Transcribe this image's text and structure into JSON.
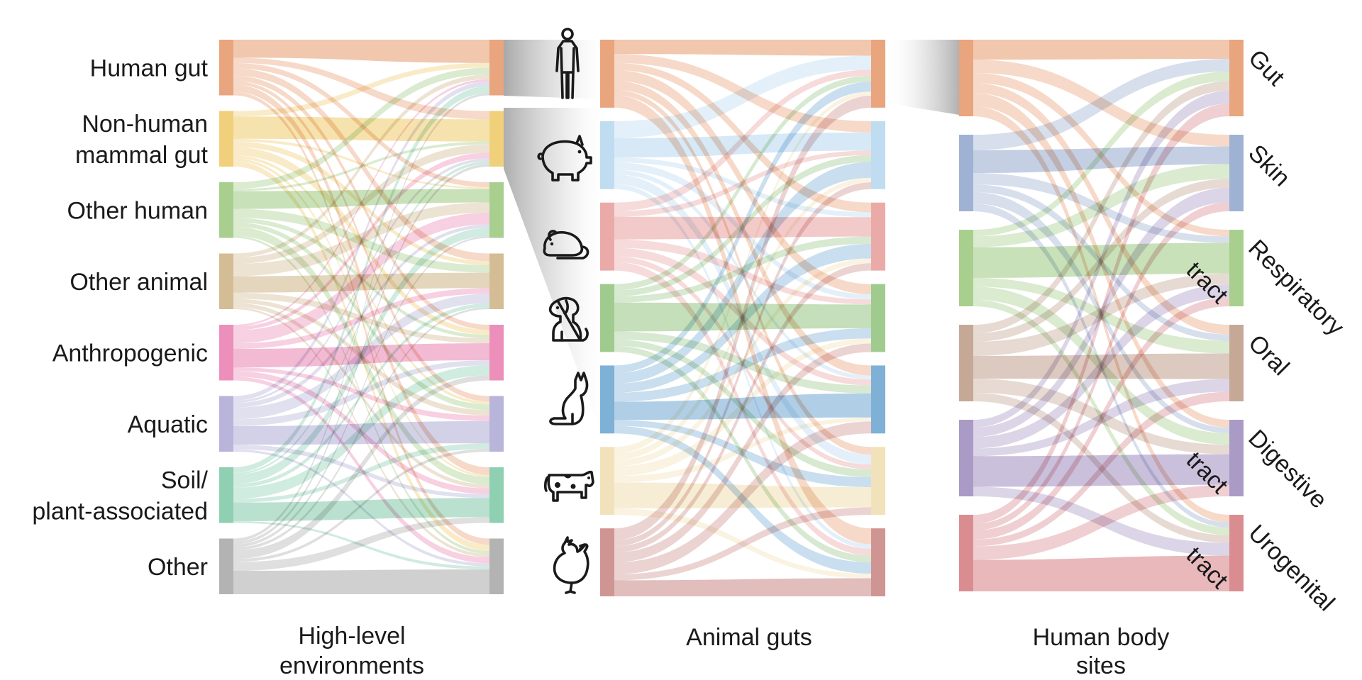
{
  "panels": {
    "environments": {
      "title_lines": [
        "High-level",
        "environments"
      ],
      "nodes": [
        {
          "label_lines": [
            "Human gut"
          ],
          "color": "#e9a57d"
        },
        {
          "label_lines": [
            "Non-human",
            "mammal gut"
          ],
          "color": "#f1d07b"
        },
        {
          "label_lines": [
            "Other human"
          ],
          "color": "#a8cf8e"
        },
        {
          "label_lines": [
            "Other animal"
          ],
          "color": "#d4bd95"
        },
        {
          "label_lines": [
            "Anthropogenic"
          ],
          "color": "#ec8fba"
        },
        {
          "label_lines": [
            "Aquatic"
          ],
          "color": "#b8b4da"
        },
        {
          "label_lines": [
            "Soil/",
            "plant-associated"
          ],
          "color": "#8fcfb2"
        },
        {
          "label_lines": [
            "Other"
          ],
          "color": "#b3b3b3"
        }
      ]
    },
    "animal_guts": {
      "title_lines": [
        "Animal guts"
      ],
      "nodes": [
        {
          "icon": "human-icon",
          "color": "#e9a57d"
        },
        {
          "icon": "pig-icon",
          "color": "#bfdcf0"
        },
        {
          "icon": "rodent-icon",
          "color": "#eaaaa8"
        },
        {
          "icon": "dog-icon",
          "color": "#9fcb8e"
        },
        {
          "icon": "cat-icon",
          "color": "#7fb0d6"
        },
        {
          "icon": "cow-icon",
          "color": "#f2e2bb"
        },
        {
          "icon": "chicken-icon",
          "color": "#cf9593"
        }
      ]
    },
    "body_sites": {
      "title_lines": [
        "Human body",
        "sites"
      ],
      "nodes": [
        {
          "label_lines": [
            "Gut"
          ],
          "color": "#e9a57d"
        },
        {
          "label_lines": [
            "Skin"
          ],
          "color": "#9fb2d3"
        },
        {
          "label_lines": [
            "Respiratory",
            "tract"
          ],
          "color": "#a8cf8e"
        },
        {
          "label_lines": [
            "Oral"
          ],
          "color": "#c6a897"
        },
        {
          "label_lines": [
            "Digestive",
            "tract"
          ],
          "color": "#a99ac6"
        },
        {
          "label_lines": [
            "Urogenital",
            "tract"
          ],
          "color": "#da8d91"
        }
      ]
    }
  },
  "flows": {
    "environments": [
      [
        0,
        0,
        10
      ],
      [
        0,
        1,
        3
      ],
      [
        0,
        2,
        3
      ],
      [
        0,
        3,
        4
      ],
      [
        0,
        4,
        3
      ],
      [
        0,
        5,
        2
      ],
      [
        0,
        6,
        4
      ],
      [
        0,
        7,
        2
      ],
      [
        1,
        0,
        2
      ],
      [
        1,
        1,
        8
      ],
      [
        1,
        2,
        1
      ],
      [
        1,
        3,
        2
      ],
      [
        1,
        4,
        3
      ],
      [
        1,
        5,
        1
      ],
      [
        1,
        6,
        1
      ],
      [
        1,
        7,
        2
      ],
      [
        2,
        0,
        3
      ],
      [
        2,
        1,
        1
      ],
      [
        2,
        2,
        8
      ],
      [
        2,
        3,
        4
      ],
      [
        2,
        4,
        2
      ],
      [
        2,
        5,
        2
      ],
      [
        2,
        6,
        4
      ],
      [
        2,
        7,
        1
      ],
      [
        3,
        0,
        2
      ],
      [
        3,
        1,
        3
      ],
      [
        3,
        2,
        6
      ],
      [
        3,
        3,
        8
      ],
      [
        3,
        4,
        3
      ],
      [
        3,
        5,
        2
      ],
      [
        3,
        6,
        2
      ],
      [
        3,
        7,
        1
      ],
      [
        4,
        0,
        1
      ],
      [
        4,
        1,
        2
      ],
      [
        4,
        2,
        7
      ],
      [
        4,
        3,
        3
      ],
      [
        4,
        4,
        10
      ],
      [
        4,
        5,
        2
      ],
      [
        4,
        6,
        3
      ],
      [
        4,
        7,
        2
      ],
      [
        5,
        0,
        2
      ],
      [
        5,
        1,
        1
      ],
      [
        5,
        2,
        2
      ],
      [
        5,
        3,
        5
      ],
      [
        5,
        4,
        3
      ],
      [
        5,
        5,
        8
      ],
      [
        5,
        6,
        2
      ],
      [
        5,
        7,
        1
      ],
      [
        6,
        0,
        3
      ],
      [
        6,
        1,
        1
      ],
      [
        6,
        2,
        5
      ],
      [
        6,
        3,
        2
      ],
      [
        6,
        4,
        6
      ],
      [
        6,
        5,
        2
      ],
      [
        6,
        6,
        10
      ],
      [
        6,
        7,
        1
      ],
      [
        7,
        0,
        1
      ],
      [
        7,
        1,
        1
      ],
      [
        7,
        2,
        1
      ],
      [
        7,
        3,
        1
      ],
      [
        7,
        4,
        3
      ],
      [
        7,
        5,
        1
      ],
      [
        7,
        6,
        3
      ],
      [
        7,
        7,
        8
      ]
    ],
    "animal_guts": [
      [
        0,
        0,
        8
      ],
      [
        0,
        1,
        5
      ],
      [
        0,
        2,
        4
      ],
      [
        0,
        3,
        6
      ],
      [
        0,
        4,
        5
      ],
      [
        0,
        5,
        3
      ],
      [
        0,
        6,
        7
      ],
      [
        1,
        0,
        7
      ],
      [
        1,
        1,
        8
      ],
      [
        1,
        2,
        2
      ],
      [
        1,
        3,
        3
      ],
      [
        1,
        4,
        2
      ],
      [
        1,
        5,
        4
      ],
      [
        1,
        6,
        2
      ],
      [
        2,
        0,
        3
      ],
      [
        2,
        1,
        2
      ],
      [
        2,
        2,
        8
      ],
      [
        2,
        3,
        3
      ],
      [
        2,
        4,
        3
      ],
      [
        2,
        5,
        2
      ],
      [
        2,
        6,
        3
      ],
      [
        3,
        0,
        3
      ],
      [
        3,
        1,
        3
      ],
      [
        3,
        2,
        3
      ],
      [
        3,
        3,
        14
      ],
      [
        3,
        4,
        4
      ],
      [
        3,
        5,
        3
      ],
      [
        3,
        6,
        3
      ],
      [
        4,
        0,
        5
      ],
      [
        4,
        1,
        7
      ],
      [
        4,
        2,
        6
      ],
      [
        4,
        3,
        6
      ],
      [
        4,
        4,
        12
      ],
      [
        4,
        5,
        4
      ],
      [
        4,
        6,
        5
      ],
      [
        5,
        0,
        2
      ],
      [
        5,
        1,
        2
      ],
      [
        5,
        2,
        2
      ],
      [
        5,
        3,
        3
      ],
      [
        5,
        4,
        2
      ],
      [
        5,
        5,
        8
      ],
      [
        5,
        6,
        2
      ],
      [
        6,
        0,
        6
      ],
      [
        6,
        1,
        3
      ],
      [
        6,
        2,
        3
      ],
      [
        6,
        3,
        5
      ],
      [
        6,
        4,
        6
      ],
      [
        6,
        5,
        3
      ],
      [
        6,
        6,
        8
      ]
    ],
    "body_sites": [
      [
        0,
        0,
        6
      ],
      [
        0,
        1,
        4
      ],
      [
        0,
        2,
        3
      ],
      [
        0,
        3,
        3
      ],
      [
        0,
        4,
        4
      ],
      [
        0,
        5,
        3
      ],
      [
        1,
        0,
        4
      ],
      [
        1,
        1,
        6
      ],
      [
        1,
        2,
        3
      ],
      [
        1,
        3,
        2
      ],
      [
        1,
        4,
        3
      ],
      [
        1,
        5,
        2
      ],
      [
        2,
        0,
        3
      ],
      [
        2,
        1,
        5
      ],
      [
        2,
        2,
        14
      ],
      [
        2,
        3,
        4
      ],
      [
        2,
        4,
        6
      ],
      [
        2,
        5,
        3
      ],
      [
        3,
        0,
        3
      ],
      [
        3,
        1,
        3
      ],
      [
        3,
        2,
        5
      ],
      [
        3,
        3,
        8
      ],
      [
        3,
        4,
        5
      ],
      [
        3,
        5,
        3
      ],
      [
        4,
        0,
        4
      ],
      [
        4,
        1,
        5
      ],
      [
        4,
        2,
        6
      ],
      [
        4,
        3,
        4
      ],
      [
        4,
        4,
        16
      ],
      [
        4,
        5,
        5
      ],
      [
        5,
        0,
        4
      ],
      [
        5,
        1,
        3
      ],
      [
        5,
        2,
        4
      ],
      [
        5,
        3,
        3
      ],
      [
        5,
        4,
        6
      ],
      [
        5,
        5,
        14
      ]
    ]
  }
}
